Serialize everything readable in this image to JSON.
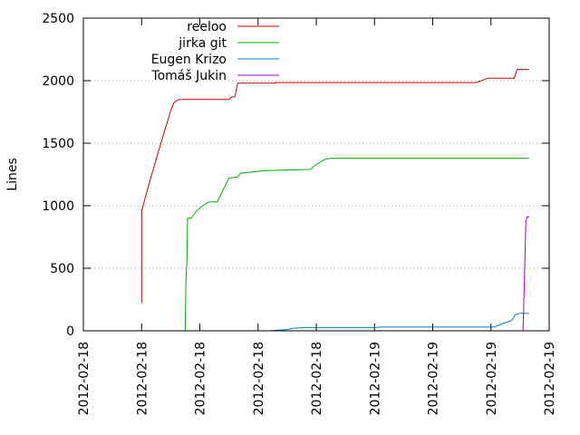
{
  "chart_data": {
    "type": "line",
    "title": "",
    "xlabel": "",
    "ylabel": "Lines",
    "xlim": [
      0,
      8
    ],
    "ylim": [
      0,
      2500
    ],
    "x_ticks": [
      "2012-02-18",
      "2012-02-18",
      "2012-02-18",
      "2012-02-18",
      "2012-02-18",
      "2012-02-19",
      "2012-02-19",
      "2012-02-19",
      "2012-02-19",
      "2012-02-19"
    ],
    "y_ticks": [
      0,
      500,
      1000,
      1500,
      2000,
      2500
    ],
    "grid": true,
    "legend_position": "top-left",
    "series": [
      {
        "name": "reeloo",
        "color": "#cc0000",
        "points": [
          [
            1.0,
            220
          ],
          [
            1.0,
            960
          ],
          [
            1.02,
            990
          ],
          [
            1.1,
            1130
          ],
          [
            1.3,
            1450
          ],
          [
            1.5,
            1760
          ],
          [
            1.55,
            1820
          ],
          [
            1.6,
            1840
          ],
          [
            1.65,
            1850
          ],
          [
            2.5,
            1850
          ],
          [
            2.55,
            1870
          ],
          [
            2.6,
            1870
          ],
          [
            2.65,
            1980
          ],
          [
            2.7,
            1980
          ],
          [
            3.3,
            1980
          ],
          [
            3.3,
            1985
          ],
          [
            6.75,
            1985
          ],
          [
            6.95,
            2020
          ],
          [
            7.05,
            2020
          ],
          [
            7.4,
            2020
          ],
          [
            7.45,
            2090
          ],
          [
            7.65,
            2090
          ]
        ]
      },
      {
        "name": "jirka git",
        "color": "#00b000",
        "points": [
          [
            1.7,
            0
          ],
          [
            1.75,
            0
          ],
          [
            1.76,
            380
          ],
          [
            1.78,
            600
          ],
          [
            1.79,
            900
          ],
          [
            1.85,
            900
          ],
          [
            1.95,
            960
          ],
          [
            2.05,
            1000
          ],
          [
            2.15,
            1030
          ],
          [
            2.3,
            1030
          ],
          [
            2.5,
            1220
          ],
          [
            2.65,
            1230
          ],
          [
            2.7,
            1260
          ],
          [
            2.9,
            1270
          ],
          [
            3.1,
            1280
          ],
          [
            3.4,
            1285
          ],
          [
            3.9,
            1290
          ],
          [
            4.0,
            1330
          ],
          [
            4.15,
            1370
          ],
          [
            4.25,
            1380
          ],
          [
            7.65,
            1380
          ]
        ]
      },
      {
        "name": "Eugen Krizo",
        "color": "#0080c0",
        "points": [
          [
            3.2,
            0
          ],
          [
            3.5,
            10
          ],
          [
            3.6,
            20
          ],
          [
            3.75,
            25
          ],
          [
            5.0,
            25
          ],
          [
            5.1,
            30
          ],
          [
            5.3,
            30
          ],
          [
            7.05,
            30
          ],
          [
            7.25,
            65
          ],
          [
            7.35,
            80
          ],
          [
            7.42,
            130
          ],
          [
            7.5,
            140
          ],
          [
            7.65,
            140
          ]
        ]
      },
      {
        "name": "Tomáš Jukin",
        "color": "#b000d0",
        "points": [
          [
            7.53,
            0
          ],
          [
            7.55,
            0
          ],
          [
            7.56,
            150
          ],
          [
            7.58,
            500
          ],
          [
            7.6,
            880
          ],
          [
            7.62,
            910
          ],
          [
            7.66,
            910
          ]
        ]
      }
    ]
  }
}
